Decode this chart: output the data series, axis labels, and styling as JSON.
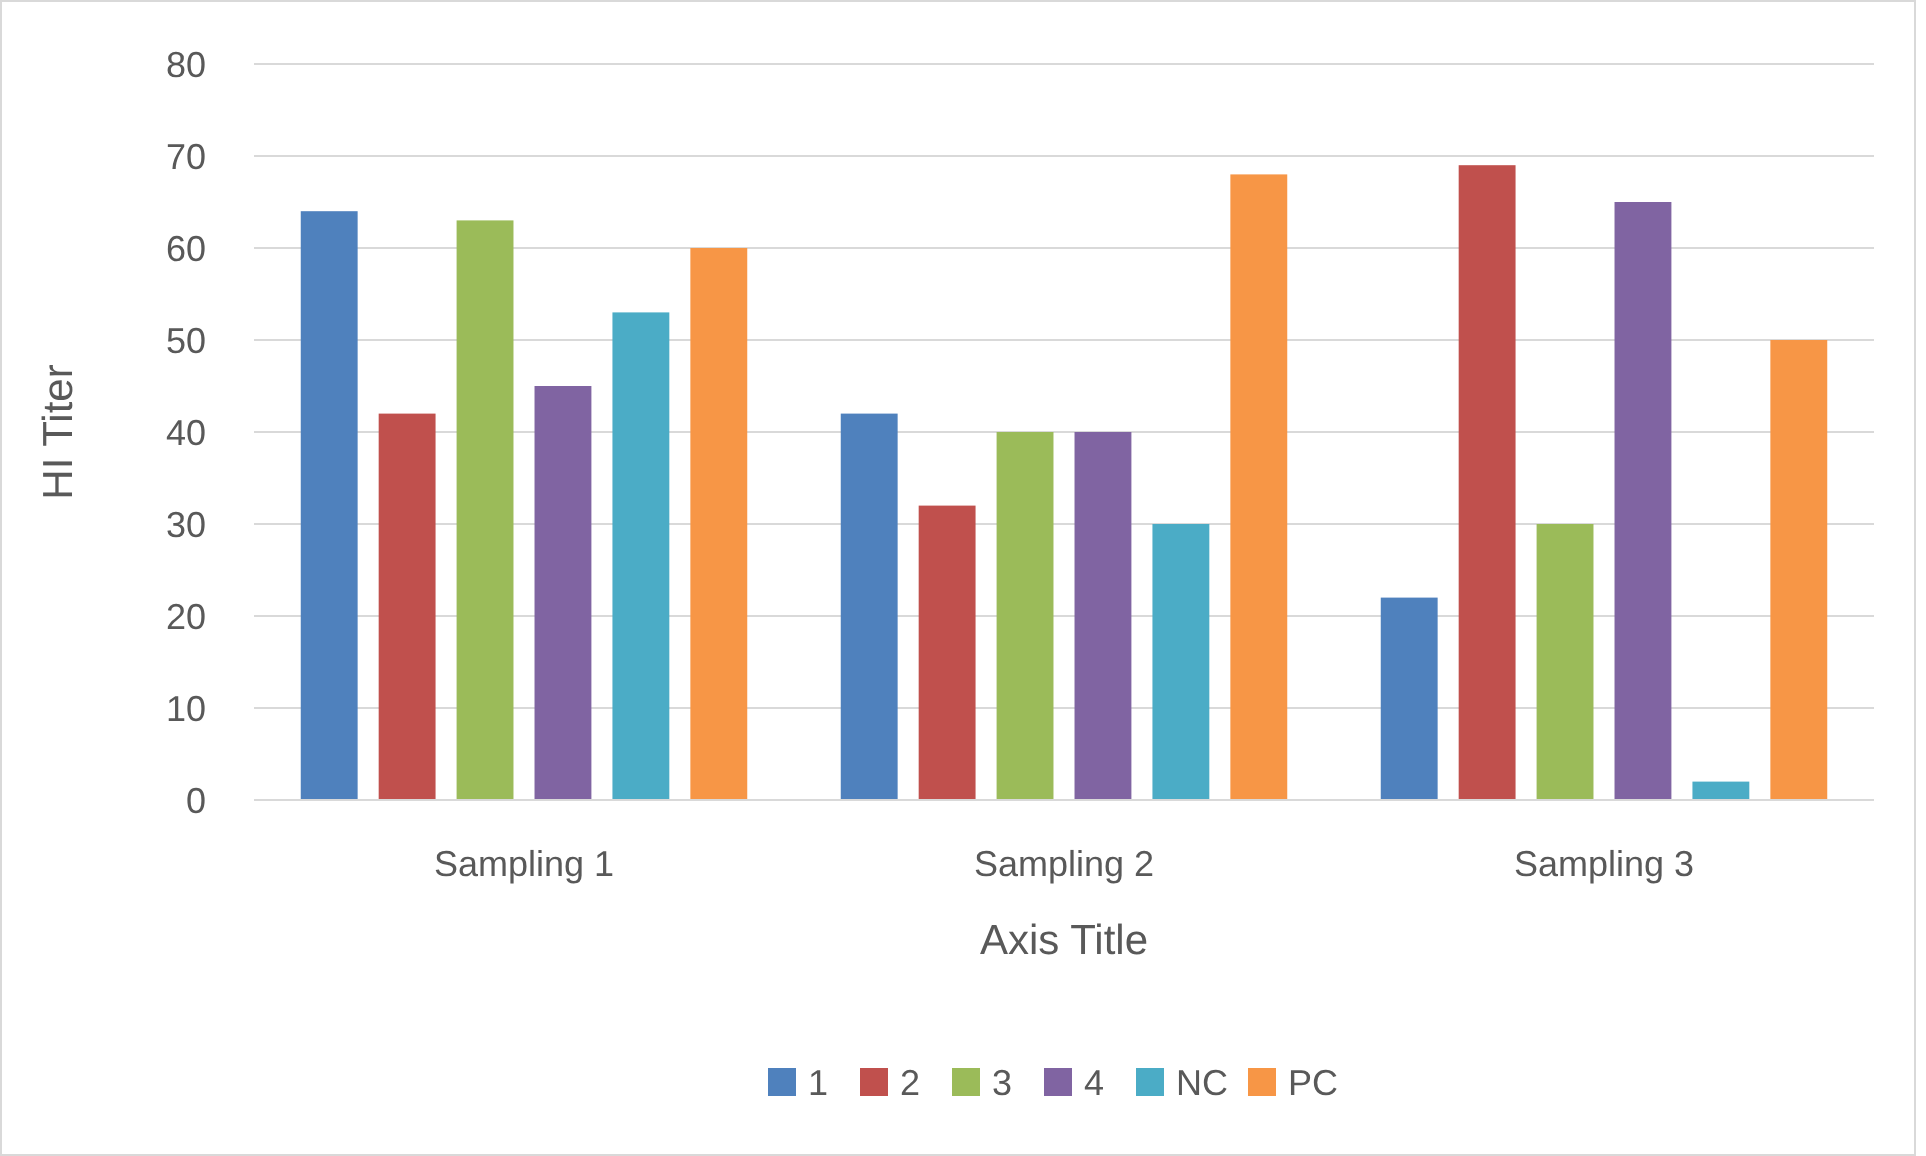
{
  "chart_data": {
    "type": "bar",
    "xlabel": "Axis Title",
    "ylabel": "HI Titer",
    "categories": [
      "Sampling 1",
      "Sampling 2",
      "Sampling 3"
    ],
    "series": [
      {
        "name": "1",
        "color": "#4f81bd",
        "values": [
          64,
          42,
          22
        ]
      },
      {
        "name": "2",
        "color": "#c0504d",
        "values": [
          42,
          32,
          69
        ]
      },
      {
        "name": "3",
        "color": "#9bbb59",
        "values": [
          63,
          40,
          30
        ]
      },
      {
        "name": "4",
        "color": "#8064a2",
        "values": [
          45,
          40,
          65
        ]
      },
      {
        "name": "NC",
        "color": "#4bacc6",
        "values": [
          53,
          30,
          2
        ]
      },
      {
        "name": "PC",
        "color": "#f79646",
        "values": [
          60,
          68,
          50
        ]
      }
    ],
    "ylim": [
      0,
      80
    ],
    "yticks": [
      0,
      10,
      20,
      30,
      40,
      50,
      60,
      70,
      80
    ],
    "grid": "y",
    "legend": "bottom"
  }
}
